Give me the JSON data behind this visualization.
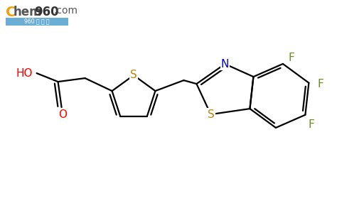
{
  "background_color": "#ffffff",
  "atom_colors": {
    "S": "#b8860b",
    "N": "#0000cd",
    "O": "#ff0000",
    "F": "#6b8e23",
    "HO": "#ff0000",
    "C": "#000000"
  },
  "bond_color": "#000000",
  "bond_width": 1.6,
  "logo_C_color": "#f5a000",
  "logo_text_color": "#555555",
  "logo_960_color": "#333333",
  "logo_bg_color": "#6aaed6",
  "logo_sub_color": "#ffffff",
  "logo_sub_text": "960 化 工 网"
}
